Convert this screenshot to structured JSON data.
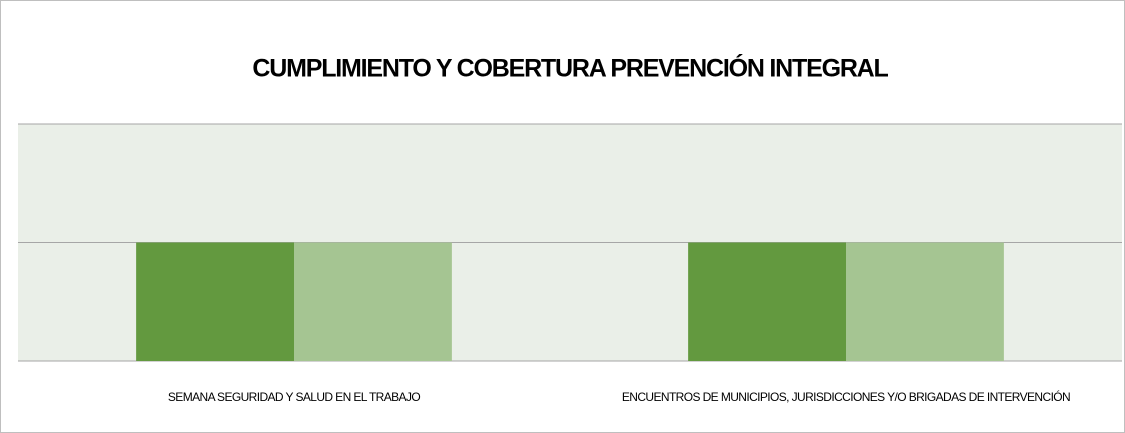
{
  "chart_data": {
    "type": "bar",
    "title": "CUMPLIMIENTO Y COBERTURA PREVENCIÓN INTEGRAL",
    "categories": [
      "SEMANA SEGURIDAD Y SALUD EN EL TRABAJO",
      "ENCUENTROS DE MUNICIPIOS, JURISDICCIONES Y/O BRIGADAS DE INTERVENCIÓN"
    ],
    "series": [
      {
        "color": "#63993f",
        "values": [
          1,
          1
        ]
      },
      {
        "color": "#a5c592",
        "values": [
          1,
          1
        ]
      }
    ],
    "ylim": [
      0,
      2
    ],
    "yticks": [
      0,
      1,
      2
    ],
    "grid": true,
    "plot_background": "#eaefe8"
  }
}
